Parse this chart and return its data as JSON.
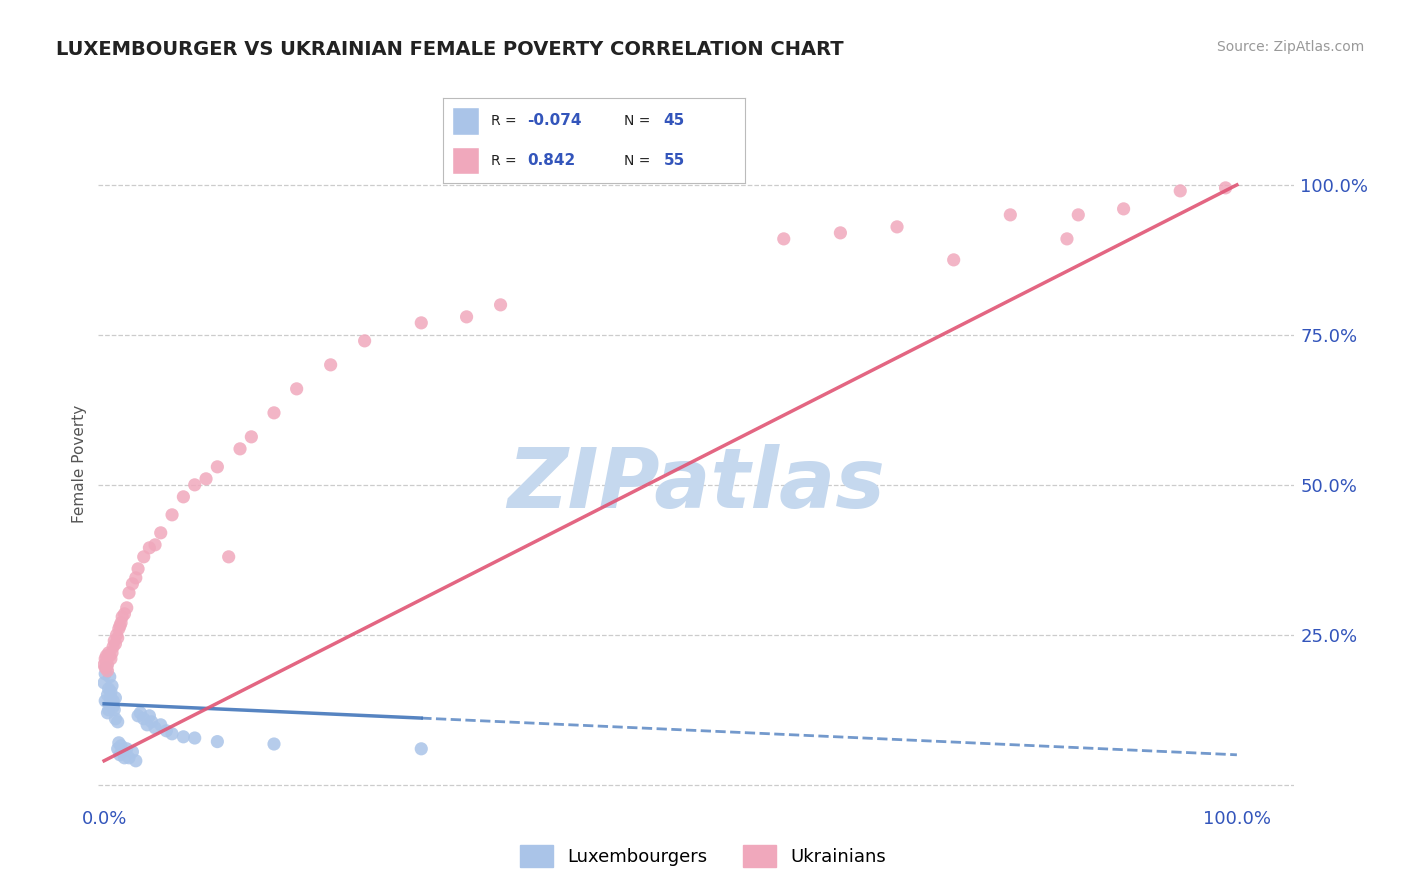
{
  "title": "LUXEMBOURGER VS UKRAINIAN FEMALE POVERTY CORRELATION CHART",
  "source": "Source: ZipAtlas.com",
  "ylabel": "Female Poverty",
  "xlim": [
    -0.005,
    1.05
  ],
  "ylim": [
    -0.03,
    1.1
  ],
  "x_ticks": [
    0.0,
    1.0
  ],
  "x_tick_labels": [
    "0.0%",
    "100.0%"
  ],
  "y_ticks_right": [
    0.0,
    0.25,
    0.5,
    0.75,
    1.0
  ],
  "y_tick_labels_right": [
    "",
    "25.0%",
    "50.0%",
    "75.0%",
    "100.0%"
  ],
  "lux_color": "#aac4e8",
  "ukr_color": "#f0a8bc",
  "lux_line_color": "#4477bb",
  "ukr_line_color": "#e05575",
  "background_color": "#ffffff",
  "grid_color": "#cccccc",
  "watermark_color": "#c5d8ee",
  "title_color": "#222222",
  "legend_color": "#3355bb",
  "lux_R": -0.074,
  "lux_N": 45,
  "ukr_R": 0.842,
  "ukr_N": 55,
  "lux_points": [
    [
      0.0,
      0.17
    ],
    [
      0.001,
      0.185
    ],
    [
      0.001,
      0.14
    ],
    [
      0.002,
      0.195
    ],
    [
      0.002,
      0.195
    ],
    [
      0.003,
      0.15
    ],
    [
      0.003,
      0.12
    ],
    [
      0.004,
      0.16
    ],
    [
      0.004,
      0.125
    ],
    [
      0.005,
      0.18
    ],
    [
      0.005,
      0.135
    ],
    [
      0.006,
      0.145
    ],
    [
      0.006,
      0.155
    ],
    [
      0.007,
      0.165
    ],
    [
      0.008,
      0.14
    ],
    [
      0.008,
      0.13
    ],
    [
      0.009,
      0.125
    ],
    [
      0.01,
      0.11
    ],
    [
      0.01,
      0.145
    ],
    [
      0.012,
      0.105
    ],
    [
      0.012,
      0.06
    ],
    [
      0.013,
      0.07
    ],
    [
      0.014,
      0.05
    ],
    [
      0.015,
      0.065
    ],
    [
      0.016,
      0.055
    ],
    [
      0.018,
      0.045
    ],
    [
      0.02,
      0.06
    ],
    [
      0.022,
      0.045
    ],
    [
      0.025,
      0.055
    ],
    [
      0.028,
      0.04
    ],
    [
      0.03,
      0.115
    ],
    [
      0.032,
      0.12
    ],
    [
      0.035,
      0.11
    ],
    [
      0.038,
      0.1
    ],
    [
      0.04,
      0.115
    ],
    [
      0.042,
      0.105
    ],
    [
      0.045,
      0.095
    ],
    [
      0.05,
      0.1
    ],
    [
      0.055,
      0.09
    ],
    [
      0.06,
      0.085
    ],
    [
      0.07,
      0.08
    ],
    [
      0.08,
      0.078
    ],
    [
      0.1,
      0.072
    ],
    [
      0.15,
      0.068
    ],
    [
      0.28,
      0.06
    ]
  ],
  "ukr_points": [
    [
      0.0,
      0.2
    ],
    [
      0.001,
      0.21
    ],
    [
      0.001,
      0.195
    ],
    [
      0.002,
      0.215
    ],
    [
      0.002,
      0.205
    ],
    [
      0.003,
      0.2
    ],
    [
      0.003,
      0.19
    ],
    [
      0.004,
      0.22
    ],
    [
      0.005,
      0.215
    ],
    [
      0.006,
      0.21
    ],
    [
      0.007,
      0.22
    ],
    [
      0.008,
      0.23
    ],
    [
      0.009,
      0.24
    ],
    [
      0.01,
      0.235
    ],
    [
      0.011,
      0.25
    ],
    [
      0.012,
      0.245
    ],
    [
      0.013,
      0.26
    ],
    [
      0.014,
      0.265
    ],
    [
      0.015,
      0.27
    ],
    [
      0.016,
      0.28
    ],
    [
      0.018,
      0.285
    ],
    [
      0.02,
      0.295
    ],
    [
      0.022,
      0.32
    ],
    [
      0.025,
      0.335
    ],
    [
      0.028,
      0.345
    ],
    [
      0.03,
      0.36
    ],
    [
      0.035,
      0.38
    ],
    [
      0.04,
      0.395
    ],
    [
      0.045,
      0.4
    ],
    [
      0.05,
      0.42
    ],
    [
      0.06,
      0.45
    ],
    [
      0.07,
      0.48
    ],
    [
      0.08,
      0.5
    ],
    [
      0.09,
      0.51
    ],
    [
      0.1,
      0.53
    ],
    [
      0.11,
      0.38
    ],
    [
      0.12,
      0.56
    ],
    [
      0.13,
      0.58
    ],
    [
      0.15,
      0.62
    ],
    [
      0.17,
      0.66
    ],
    [
      0.2,
      0.7
    ],
    [
      0.23,
      0.74
    ],
    [
      0.28,
      0.77
    ],
    [
      0.32,
      0.78
    ],
    [
      0.35,
      0.8
    ],
    [
      0.6,
      0.91
    ],
    [
      0.65,
      0.92
    ],
    [
      0.7,
      0.93
    ],
    [
      0.75,
      0.875
    ],
    [
      0.8,
      0.95
    ],
    [
      0.85,
      0.91
    ],
    [
      0.86,
      0.95
    ],
    [
      0.9,
      0.96
    ],
    [
      0.95,
      0.99
    ],
    [
      0.99,
      0.995
    ]
  ],
  "lux_line_x": [
    0.0,
    1.0
  ],
  "lux_line_y_start": 0.135,
  "lux_line_y_end": 0.05,
  "ukr_line_x": [
    0.0,
    1.0
  ],
  "ukr_line_y_start": 0.04,
  "ukr_line_y_end": 1.0
}
